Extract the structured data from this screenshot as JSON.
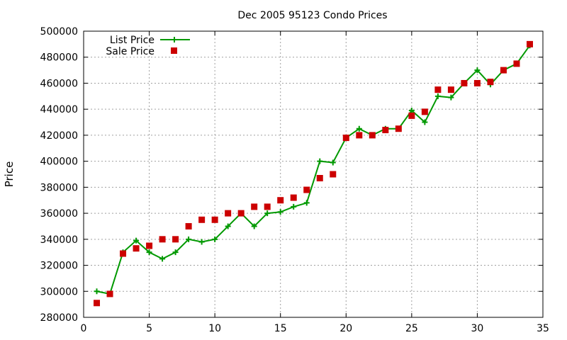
{
  "chart_data": {
    "type": "line",
    "title": "Dec 2005 95123 Condo Prices",
    "xlabel": "",
    "ylabel": "Price",
    "xlim": [
      0,
      35
    ],
    "ylim": [
      280000,
      500000
    ],
    "xticks": [
      0,
      5,
      10,
      15,
      20,
      25,
      30,
      35
    ],
    "yticks": [
      280000,
      300000,
      320000,
      340000,
      360000,
      380000,
      400000,
      420000,
      440000,
      460000,
      480000,
      500000
    ],
    "grid": true,
    "legend_position": "top-left",
    "series": [
      {
        "name": "List Price",
        "style": "line-with-plus",
        "color": "#009900",
        "x": [
          1,
          2,
          3,
          4,
          5,
          6,
          7,
          8,
          9,
          10,
          11,
          12,
          13,
          14,
          15,
          16,
          17,
          18,
          19,
          20,
          21,
          22,
          23,
          24,
          25,
          26,
          27,
          28,
          29,
          30,
          31,
          32,
          33,
          34
        ],
        "y": [
          300000,
          298000,
          330000,
          339000,
          330000,
          325000,
          330000,
          340000,
          338000,
          340000,
          350000,
          360000,
          350000,
          360000,
          361000,
          365000,
          368000,
          400000,
          399000,
          418000,
          425000,
          420000,
          425000,
          425000,
          439000,
          430000,
          450000,
          449000,
          460000,
          470000,
          459000,
          470000,
          475000,
          489000
        ]
      },
      {
        "name": "Sale Price",
        "style": "square-markers",
        "color": "#cc0000",
        "x": [
          1,
          2,
          3,
          4,
          5,
          6,
          7,
          8,
          9,
          10,
          11,
          12,
          13,
          14,
          15,
          16,
          17,
          18,
          19,
          20,
          21,
          22,
          23,
          24,
          25,
          26,
          27,
          28,
          29,
          30,
          31,
          32,
          33,
          34
        ],
        "y": [
          291000,
          298000,
          329000,
          333000,
          335000,
          340000,
          340000,
          350000,
          355000,
          355000,
          360000,
          360000,
          365000,
          365000,
          370000,
          372000,
          378000,
          387000,
          390000,
          418000,
          420000,
          420000,
          424000,
          425000,
          435000,
          438000,
          455000,
          455000,
          460000,
          460000,
          461000,
          470000,
          475000,
          490000
        ]
      }
    ]
  }
}
